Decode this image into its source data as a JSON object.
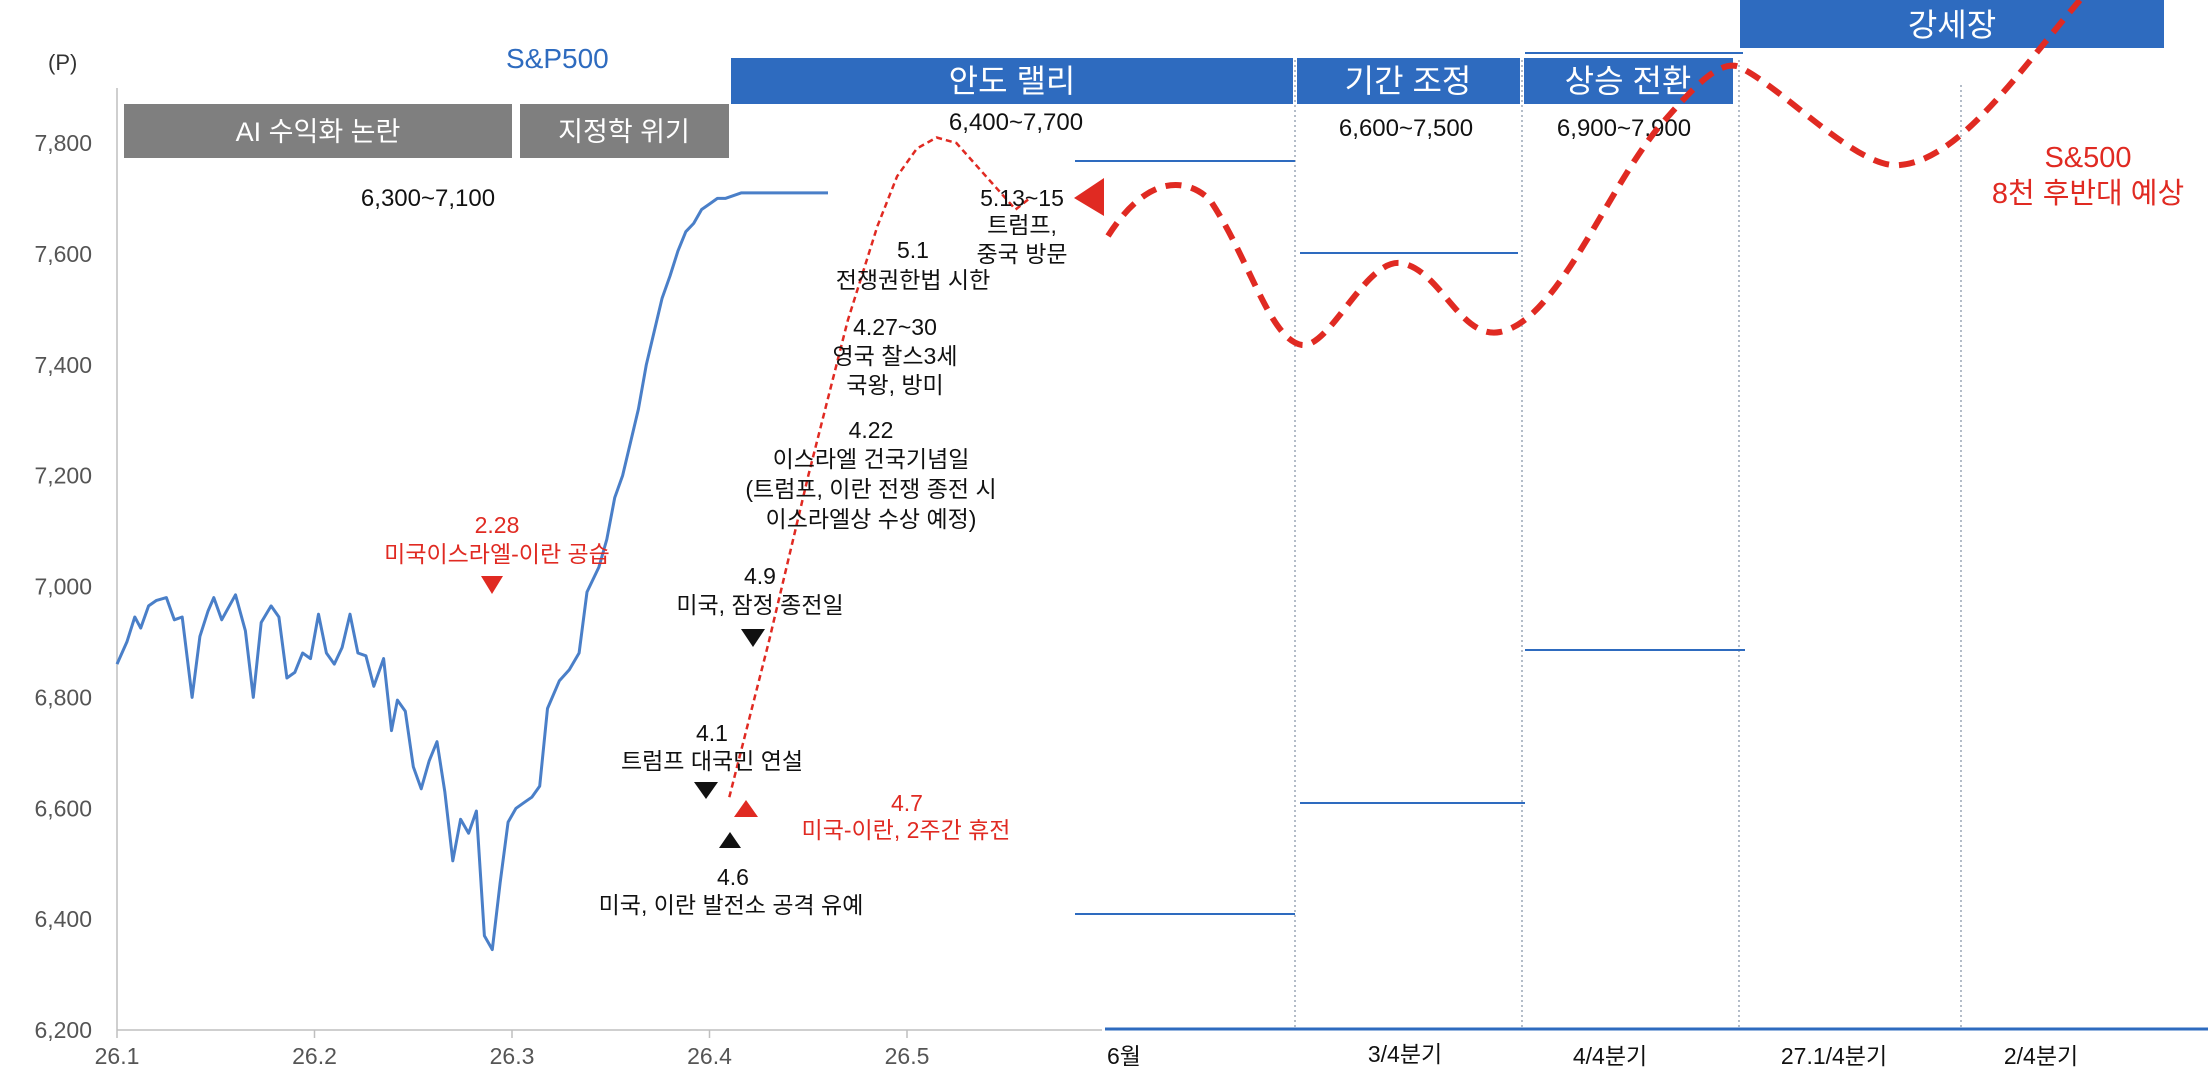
{
  "chart_data": {
    "type": "line",
    "title": "S&P500",
    "unit": "(P)",
    "ylim": [
      6200,
      7850
    ],
    "yticks": [
      "6,200",
      "6,400",
      "6,600",
      "6,800",
      "7,000",
      "7,200",
      "7,400",
      "7,600",
      "7,800"
    ],
    "ytick_values": [
      6200,
      6400,
      6600,
      6800,
      7000,
      7200,
      7400,
      7600,
      7800
    ],
    "xticks": [
      "26.1",
      "26.2",
      "26.3",
      "26.4",
      "26.5"
    ],
    "xtick_values": [
      0,
      1,
      2,
      3,
      4
    ],
    "forecast_ticks": [
      "6월",
      "3/4분기",
      "4/4분기",
      "27.1/4분기",
      "2/4분기"
    ],
    "grid": false,
    "series": [
      {
        "name": "S&P500",
        "color": "#4a7fc8",
        "style": "solid",
        "x": [
          0.0,
          0.05,
          0.09,
          0.12,
          0.16,
          0.2,
          0.25,
          0.29,
          0.33,
          0.38,
          0.42,
          0.46,
          0.49,
          0.53,
          0.6,
          0.65,
          0.69,
          0.73,
          0.78,
          0.82,
          0.86,
          0.9,
          0.94,
          0.98,
          1.02,
          1.06,
          1.1,
          1.14,
          1.18,
          1.22,
          1.26,
          1.3,
          1.35,
          1.39,
          1.42,
          1.46,
          1.5,
          1.54,
          1.58,
          1.62,
          1.66,
          1.7,
          1.74,
          1.78,
          1.82,
          1.86,
          1.9,
          1.94,
          1.98,
          2.02,
          2.06,
          2.1,
          2.14,
          2.18,
          2.24,
          2.29,
          2.34,
          2.38,
          2.44,
          2.48,
          2.52,
          2.56,
          2.6,
          2.64,
          2.68,
          2.72,
          2.76,
          2.8,
          2.84,
          2.88,
          2.92,
          2.96,
          3.0,
          3.04,
          3.08,
          3.12,
          3.16,
          3.2,
          3.24,
          3.28,
          3.32,
          3.36,
          3.4,
          3.44,
          3.48,
          3.52,
          3.56,
          3.6
        ],
        "y": [
          6860,
          6900,
          6945,
          6925,
          6965,
          6975,
          6980,
          6940,
          6945,
          6800,
          6910,
          6955,
          6980,
          6940,
          6985,
          6920,
          6800,
          6935,
          6965,
          6945,
          6835,
          6845,
          6880,
          6870,
          6950,
          6880,
          6860,
          6890,
          6950,
          6880,
          6875,
          6820,
          6870,
          6740,
          6795,
          6775,
          6675,
          6635,
          6685,
          6720,
          6630,
          6505,
          6580,
          6555,
          6595,
          6370,
          6345,
          6465,
          6575,
          6600,
          6610,
          6620,
          6640,
          6780,
          6830,
          6850,
          6880,
          6990,
          7035,
          7085,
          7160,
          7200,
          7260,
          7320,
          7400,
          7460,
          7520,
          7560,
          7605,
          7640,
          7655,
          7680,
          7690,
          7700,
          7700,
          7705,
          7710,
          7710,
          7710,
          7710,
          7710,
          7710,
          7710,
          7710,
          7710,
          7710,
          7710,
          7710
        ]
      },
      {
        "name": "S&500 8천 후반대 예상",
        "color": "#e02a22",
        "style": "dashed",
        "x": [
          3.1,
          3.3,
          3.5,
          3.7,
          3.85,
          3.95,
          4.05,
          4.15,
          4.25,
          4.35,
          4.45,
          4.55,
          4.62
        ],
        "y": [
          6620,
          6900,
          7200,
          7480,
          7650,
          7740,
          7790,
          7810,
          7800,
          7760,
          7720,
          7680,
          7700
        ]
      }
    ],
    "annotations": [
      {
        "label": "2.28",
        "text": "미국이스라엘-이란 공습",
        "color": "#e02a22"
      },
      {
        "label": "4.1",
        "text": "트럼프 대국민 연설",
        "color": "#000000"
      },
      {
        "label": "4.6",
        "text": "미국, 이란 발전소 공격 유예",
        "color": "#000000"
      },
      {
        "label": "4.7",
        "text": "미국-이란, 2주간 휴전",
        "color": "#e02a22"
      },
      {
        "label": "4.9",
        "text": "미국, 잠정 종전일",
        "color": "#000000"
      },
      {
        "label": "4.22",
        "lines": [
          "이스라엘 건국기념일",
          "(트럼프, 이란 전쟁 종전 시",
          "이스라엘상 수상 예정)"
        ],
        "color": "#000000"
      },
      {
        "label": "4.27~30",
        "lines": [
          "영국 찰스3세",
          "국왕, 방미"
        ],
        "color": "#000000"
      },
      {
        "label": "5.1",
        "lines": [
          "전쟁권한법 시한"
        ],
        "color": "#000000"
      },
      {
        "label": "5.13~15",
        "lines": [
          "트럼프,",
          "중국 방문"
        ],
        "color": "#000000"
      }
    ],
    "phases": [
      {
        "label": "AI 수익화 논란",
        "range": "6,300~7,100",
        "color": "#7f7f7f"
      },
      {
        "label": "지정학 위기",
        "range": "",
        "color": "#7f7f7f"
      },
      {
        "label": "안도 랠리",
        "range": "6,400~7,700",
        "color": "#2e6bbf"
      },
      {
        "label": "기간 조정",
        "range": "6,600~7,500",
        "color": "#2e6bbf"
      },
      {
        "label": "상승 전환",
        "range": "6,900~7,900",
        "color": "#2e6bbf"
      },
      {
        "label": "강세장",
        "range": "",
        "color": "#2e6bbf"
      }
    ],
    "forecast_label": [
      "S&500",
      "8천 후반대 예상"
    ]
  }
}
